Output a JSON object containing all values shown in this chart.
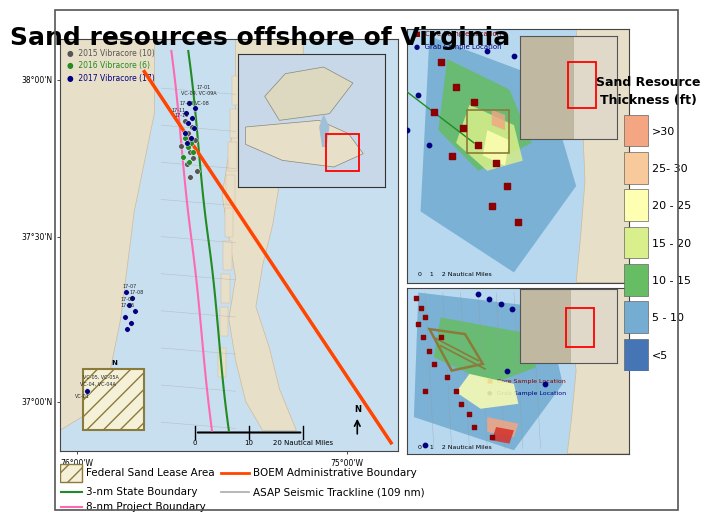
{
  "title": "Sand resources offshore of Virginia",
  "title_fontsize": 18,
  "title_fontweight": "bold",
  "background_color": "#ffffff",
  "left_panel": {
    "bg_color": "#c8dff0",
    "land_color": "#e8dfc8",
    "boem_line": {
      "color": "#ff4500",
      "lw": 2.5
    },
    "state_boundary": {
      "color": "#228B22",
      "lw": 1.5
    },
    "project_boundary": {
      "color": "#ff69b4",
      "lw": 1.5
    },
    "seismic_color": "#aaaaaa",
    "lease_area_color": "#8B7B3A"
  },
  "top_right_panel": {
    "bg_color": "#b8d8f0",
    "inset_bg": "#c8bfa8"
  },
  "bottom_right_panel": {
    "bg_color": "#b8d8f0",
    "inset_bg": "#c8bfa8"
  },
  "colorbar": {
    "title_line1": "Sand Resource",
    "title_line2": "Thickness (ft)",
    "title_fontsize": 9,
    "title_fontweight": "bold",
    "labels": [
      ">30",
      "25- 30",
      "20 - 25",
      "15 - 20",
      "10 - 15",
      "5 - 10",
      "<5"
    ],
    "colors": [
      "#f4a582",
      "#f7c99b",
      "#ffffb2",
      "#d9ef8b",
      "#66bd63",
      "#74add1",
      "#4575b4"
    ],
    "fontsize": 8
  },
  "bottom_legend": {
    "fontsize": 7.5
  }
}
